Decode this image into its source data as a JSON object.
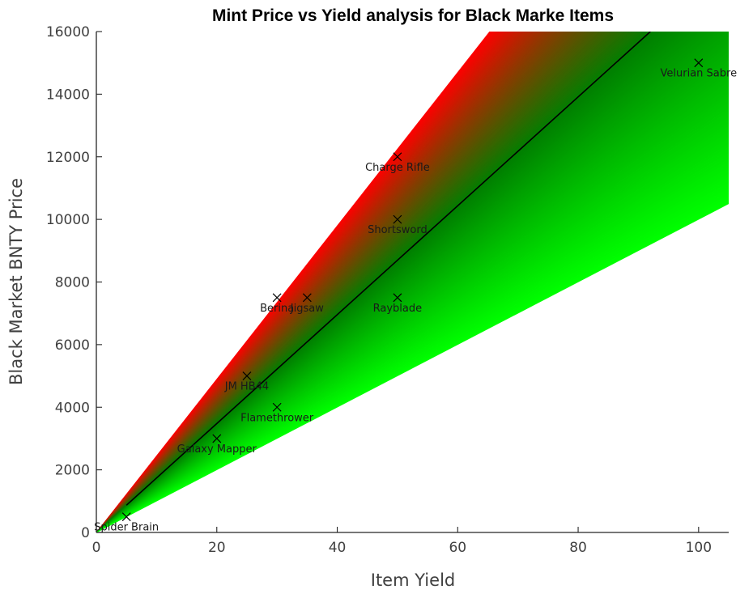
{
  "chart_data": {
    "type": "scatter",
    "title": "Mint Price vs Yield analysis for Black Marke Items",
    "xlabel": "Item Yield",
    "ylabel": "Black Market BNTY Price",
    "xlim": [
      0,
      105
    ],
    "ylim": [
      0,
      16000
    ],
    "xticks": [
      0,
      20,
      40,
      60,
      80,
      100
    ],
    "yticks": [
      0,
      2000,
      4000,
      6000,
      8000,
      10000,
      12000,
      14000,
      16000
    ],
    "grid": false,
    "legend": "none",
    "points": [
      {
        "label": "Spider Brain",
        "x": 5,
        "y": 500
      },
      {
        "label": "Galaxy Mapper",
        "x": 20,
        "y": 3000
      },
      {
        "label": "JM HB44",
        "x": 25,
        "y": 5000
      },
      {
        "label": "Flamethrower",
        "x": 30,
        "y": 4000
      },
      {
        "label": "Berina",
        "x": 30,
        "y": 7500
      },
      {
        "label": "Jigsaw",
        "x": 35,
        "y": 7500
      },
      {
        "label": "Rayblade",
        "x": 50,
        "y": 7500
      },
      {
        "label": "Shortsword",
        "x": 50,
        "y": 10000
      },
      {
        "label": "Charge Rifle",
        "x": 50,
        "y": 12000
      },
      {
        "label": "Velurian Sabre",
        "x": 100,
        "y": 15000
      }
    ],
    "trend_line": {
      "x": [
        5,
        92
      ],
      "y": [
        870,
        16000
      ]
    },
    "band": {
      "upper_slope": 245,
      "lower_slope": 100,
      "upper_color": "#ff0000",
      "lower_color": "#00ff00",
      "mid_color": "#008000"
    }
  }
}
